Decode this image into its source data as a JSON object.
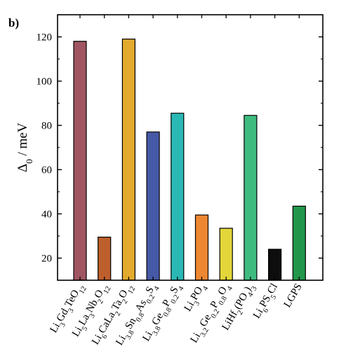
{
  "panel_label": "b)",
  "chart_data": {
    "type": "bar",
    "ylabel": "Δ0 / meV",
    "ylabel_parts": [
      {
        "t": "Δ",
        "sub": false
      },
      {
        "t": "0",
        "sub": true
      },
      {
        "t": " / meV",
        "sub": false
      }
    ],
    "ylim": [
      10,
      130
    ],
    "yticks": [
      20,
      40,
      60,
      80,
      100,
      120
    ],
    "grid": false,
    "categories": [
      "Li3Gd3TeO12",
      "Li5La3Nb2O12",
      "Li6CaLa2Ta2O12",
      "Li3.8Sn0.8As0.2S4",
      "Li3.8Ge0.8P0.2S4",
      "Li3PO4",
      "Li3.2Ge0.2P0.8O4",
      "LiHf2(PO4)3",
      "Li6PS5Cl",
      "LGPS"
    ],
    "category_parts": [
      [
        {
          "t": "Li",
          "sub": false
        },
        {
          "t": "3",
          "sub": true
        },
        {
          "t": "Gd",
          "sub": false
        },
        {
          "t": "3",
          "sub": true
        },
        {
          "t": "TeO",
          "sub": false
        },
        {
          "t": "12",
          "sub": true
        }
      ],
      [
        {
          "t": "Li",
          "sub": false
        },
        {
          "t": "5",
          "sub": true
        },
        {
          "t": "La",
          "sub": false
        },
        {
          "t": "3",
          "sub": true
        },
        {
          "t": "Nb",
          "sub": false
        },
        {
          "t": "2",
          "sub": true
        },
        {
          "t": "O",
          "sub": false
        },
        {
          "t": "12",
          "sub": true
        }
      ],
      [
        {
          "t": "Li",
          "sub": false
        },
        {
          "t": "6",
          "sub": true
        },
        {
          "t": "CaLa",
          "sub": false
        },
        {
          "t": "2",
          "sub": true
        },
        {
          "t": "Ta",
          "sub": false
        },
        {
          "t": "2",
          "sub": true
        },
        {
          "t": "O",
          "sub": false
        },
        {
          "t": "12",
          "sub": true
        }
      ],
      [
        {
          "t": "Li",
          "sub": false
        },
        {
          "t": "3.8",
          "sub": true
        },
        {
          "t": "Sn",
          "sub": false
        },
        {
          "t": "0.8",
          "sub": true
        },
        {
          "t": "As",
          "sub": false
        },
        {
          "t": "0.2",
          "sub": true
        },
        {
          "t": "S",
          "sub": false
        },
        {
          "t": "4",
          "sub": true
        }
      ],
      [
        {
          "t": "Li",
          "sub": false
        },
        {
          "t": "3.8",
          "sub": true
        },
        {
          "t": "Ge",
          "sub": false
        },
        {
          "t": "0.8",
          "sub": true
        },
        {
          "t": "P",
          "sub": false
        },
        {
          "t": "0.2",
          "sub": true
        },
        {
          "t": "S",
          "sub": false
        },
        {
          "t": "4",
          "sub": true
        }
      ],
      [
        {
          "t": "Li",
          "sub": false
        },
        {
          "t": "3",
          "sub": true
        },
        {
          "t": "PO",
          "sub": false
        },
        {
          "t": "4",
          "sub": true
        }
      ],
      [
        {
          "t": "Li",
          "sub": false
        },
        {
          "t": "3.2",
          "sub": true
        },
        {
          "t": "Ge",
          "sub": false
        },
        {
          "t": "0.2",
          "sub": true
        },
        {
          "t": "P",
          "sub": false
        },
        {
          "t": "0.8",
          "sub": true
        },
        {
          "t": "O",
          "sub": false
        },
        {
          "t": "4",
          "sub": true
        }
      ],
      [
        {
          "t": "LiHf",
          "sub": false
        },
        {
          "t": "2",
          "sub": true
        },
        {
          "t": "(PO",
          "sub": false
        },
        {
          "t": "4",
          "sub": true
        },
        {
          "t": ")",
          "sub": false
        },
        {
          "t": "3",
          "sub": true
        }
      ],
      [
        {
          "t": "Li",
          "sub": false
        },
        {
          "t": "6",
          "sub": true
        },
        {
          "t": "PS",
          "sub": false
        },
        {
          "t": "5",
          "sub": true
        },
        {
          "t": "Cl",
          "sub": false
        }
      ],
      [
        {
          "t": "LGPS",
          "sub": false
        }
      ]
    ],
    "values": [
      118,
      29.5,
      119,
      77,
      85.5,
      39.5,
      33.5,
      84.5,
      24,
      43.5
    ],
    "colors": [
      "#a05662",
      "#bd5f2c",
      "#e3aa2e",
      "#4659a6",
      "#2ab8b5",
      "#ee8732",
      "#e3d63a",
      "#3fbb7f",
      "#0d0d0d",
      "#22974b"
    ]
  }
}
